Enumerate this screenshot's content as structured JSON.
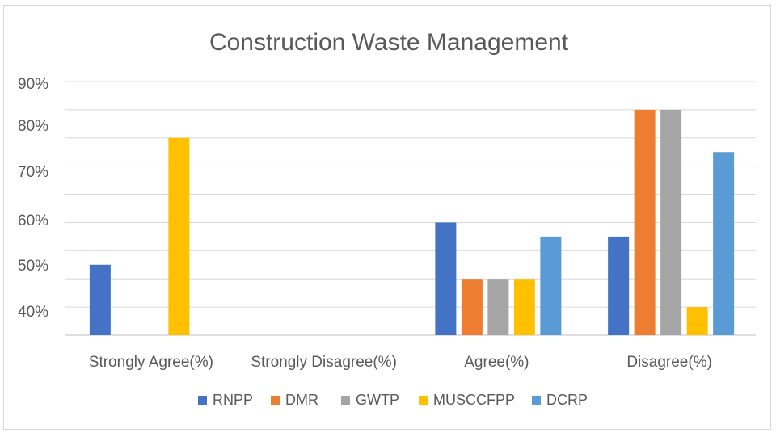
{
  "chart_data": {
    "type": "bar",
    "title": "Construction Waste Management",
    "xlabel": "",
    "ylabel": "",
    "y_tick_labels": [
      "90%",
      "80%",
      "70%",
      "60%",
      "50%",
      "40%"
    ],
    "categories": [
      "Strongly Agree(%)",
      "Strongly Disagree(%)",
      "Agree(%)",
      "Disagree(%)"
    ],
    "series": [
      {
        "name": "RNPP",
        "color": "#4472C4",
        "values": [
          25,
          0,
          40,
          35
        ]
      },
      {
        "name": "DMR",
        "color": "#ED7D31",
        "values": [
          0,
          0,
          20,
          80
        ]
      },
      {
        "name": "GWTP",
        "color": "#A5A5A5",
        "values": [
          0,
          0,
          20,
          80
        ]
      },
      {
        "name": "MUSCCFPP",
        "color": "#FFC000",
        "values": [
          70,
          0,
          20,
          10
        ]
      },
      {
        "name": "DCRP",
        "color": "#5B9BD5",
        "values": [
          0,
          0,
          35,
          65
        ]
      }
    ],
    "ylim": [
      0,
      90
    ],
    "grid": true,
    "legend": "bottom"
  }
}
